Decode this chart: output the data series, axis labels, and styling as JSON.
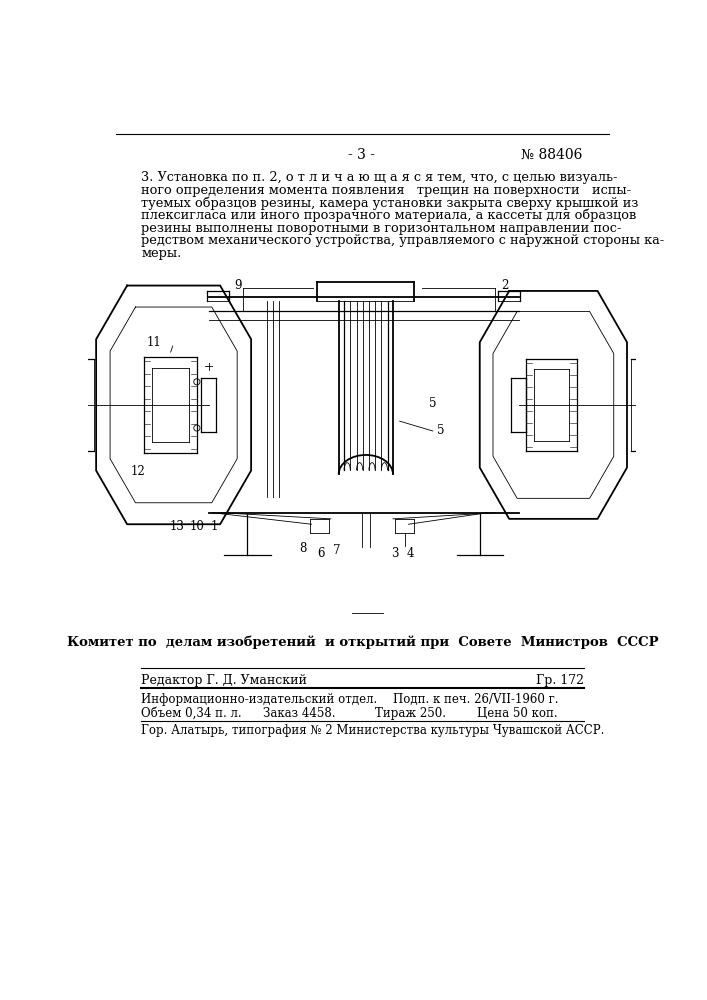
{
  "page_number": "- 3 -",
  "patent_number": "№ 88406",
  "paragraph_lines": [
    "3. Установка по п. 2, о т л и ч а ю щ а я с я тем, что, с целью визуаль-",
    "ного определения момента появления   трещин на поверхности   испы-",
    "туемых образцов резины, камера установки закрыта сверху крышкой из",
    "плексигласа или иного прозрачного материала, а кассеты для образцов",
    "резины выполнены поворотными в горизонтальном направлении пос-",
    "редством механического устройства, управляемого с наружной стороны ка-",
    "меры."
  ],
  "committee_text": "Комитет по  делам изобретений  и открытий при  Совете  Министров  СССР",
  "editor_text": "Редактор Г. Д. Уманский",
  "gr_text": "Гр. 172",
  "info_line1": "Информационно-издательский отдел.",
  "info_line1_right": "Подп. к печ. 26/VII-1960 г.",
  "info_line2_left": "Объем 0,34 п. л.",
  "info_line2_mid1": "Заказ 4458.",
  "info_line2_mid2": "Тираж 250.",
  "info_line2_right": "Цена 50 коп.",
  "info_line3": "Гор. Алатырь, типография № 2 Министерства культуры Чувашской АССР.",
  "bg_color": "#ffffff",
  "text_color": "#000000"
}
